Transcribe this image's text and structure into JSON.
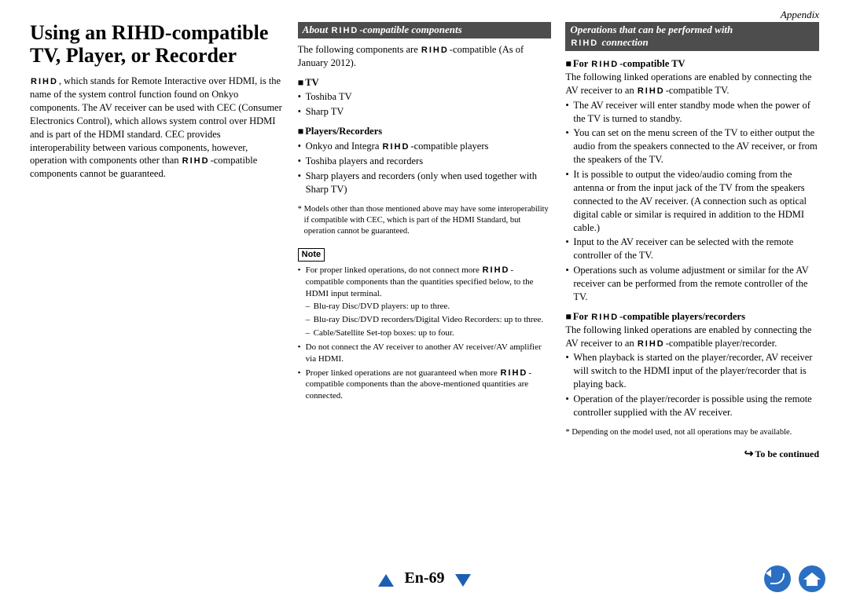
{
  "header": {
    "appendix": "Appendix"
  },
  "col1": {
    "title": "Using an RIHD-compatible TV, Player, or Recorder",
    "intro_before": ", which stands for Remote Interactive over HDMI, is the name of the system control function found on Onkyo components. The AV receiver can be used with CEC (Consumer Electronics Control), which allows system control over HDMI and is part of the HDMI standard. CEC provides interoperability between various components, however, operation with components other than ",
    "intro_after": "-compatible components cannot be guaranteed."
  },
  "col2": {
    "banner_prefix": "About ",
    "banner_suffix": "-compatible components",
    "p1_prefix": "The following components are ",
    "p1_suffix": "-compatible (As of January 2012).",
    "tv_header": "TV",
    "tv_items": [
      "Toshiba TV",
      "Sharp TV"
    ],
    "players_header": "Players/Recorders",
    "player_item1_prefix": "Onkyo and Integra ",
    "player_item1_suffix": "-compatible players",
    "player_item2": "Toshiba players and recorders",
    "player_item3": "Sharp players and recorders (only when used together with Sharp TV)",
    "footnote": "Models other than those mentioned above may have some interoperability if compatible with CEC, which is part of the HDMI Standard, but operation cannot be guaranteed.",
    "note_label": "Note",
    "note1_prefix": "For proper linked operations, do not connect more ",
    "note1_suffix": "-compatible components than the quantities specified below, to the HDMI input terminal.",
    "note1_d1": "Blu-ray Disc/DVD players: up to three.",
    "note1_d2": "Blu-ray Disc/DVD recorders/Digital Video Recorders: up to three.",
    "note1_d3": "Cable/Satellite Set-top boxes: up to four.",
    "note2": "Do not connect the AV receiver to another AV receiver/AV amplifier via HDMI.",
    "note3_prefix": "Proper linked operations are not guaranteed when more ",
    "note3_suffix": "-compatible components than the above-mentioned quantities are connected."
  },
  "col3": {
    "banner_line1": "Operations that can be performed with",
    "banner_line2": " connection",
    "tv_header_prefix": "For ",
    "tv_header_suffix": "-compatible TV",
    "tv_p_prefix": "The following linked operations are enabled by connecting the AV receiver to an ",
    "tv_p_suffix": "-compatible TV.",
    "tv_bullets": [
      "The AV receiver will enter standby mode when the power of the TV is turned to standby.",
      "You can set on the menu screen of the TV to either output the audio from the speakers connected to the AV receiver, or from the speakers of the TV.",
      "It is possible to output the video/audio coming from the antenna or from the input jack of the TV from the speakers connected to the AV receiver. (A connection such as optical digital cable or similar is required in addition to the HDMI cable.)",
      "Input to the AV receiver can be selected with the remote controller of the TV.",
      "Operations such as volume adjustment or similar for the AV receiver can be performed from the remote controller of the TV."
    ],
    "pl_header_prefix": "For ",
    "pl_header_suffix": "-compatible players/recorders",
    "pl_p_prefix": "The following linked operations are enabled by connecting the AV receiver to an ",
    "pl_p_suffix": "-compatible player/recorder.",
    "pl_bullets": [
      "When playback is started on the player/recorder, AV receiver will switch to the HDMI input of the player/recorder that is playing back.",
      "Operation of the player/recorder is possible using the remote controller supplied with the AV receiver."
    ],
    "footnote": "Depending on the model used, not all operations may be available.",
    "tbc": "To be continued"
  },
  "footer": {
    "page": "En-69"
  },
  "rihd_logo_text": "RIHD"
}
